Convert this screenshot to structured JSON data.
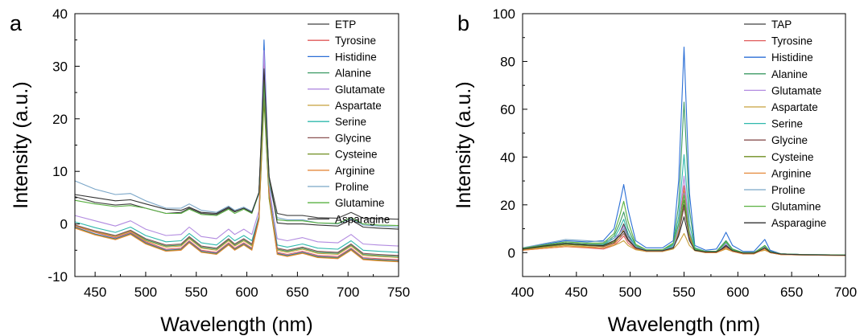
{
  "chart_data": [
    {
      "panel": "a",
      "type": "line",
      "title": "",
      "xlabel": "Wavelength (nm)",
      "ylabel": "Intensity (a.u.)",
      "xlim": [
        430,
        750
      ],
      "ylim": [
        -10,
        40
      ],
      "xticks": [
        450,
        500,
        550,
        600,
        650,
        700,
        750
      ],
      "yticks": [
        -10,
        0,
        10,
        20,
        30,
        40
      ],
      "grid": false,
      "legend": "top-right",
      "x": [
        430,
        450,
        470,
        485,
        500,
        520,
        535,
        543,
        555,
        570,
        582,
        588,
        597,
        605,
        612,
        617,
        622,
        630,
        640,
        655,
        670,
        690,
        703,
        715,
        730,
        750
      ],
      "series": [
        {
          "name": "ETP",
          "color": "#404040",
          "values": [
            5.2,
            4.1,
            3.6,
            3.8,
            3.0,
            2.0,
            2.2,
            3.0,
            2.0,
            1.8,
            3.0,
            2.3,
            3.0,
            2.2,
            6.0,
            28.0,
            9.0,
            2.0,
            1.6,
            1.6,
            1.2,
            1.1,
            2.2,
            1.1,
            1.0,
            0.9
          ]
        },
        {
          "name": "Tyrosine",
          "color": "#e05a5a",
          "values": [
            -0.4,
            -1.6,
            -2.6,
            -1.6,
            -3.4,
            -4.8,
            -4.6,
            -3.2,
            -5.0,
            -5.4,
            -3.6,
            -4.6,
            -3.6,
            -4.6,
            1.0,
            31.0,
            6.0,
            -5.4,
            -5.8,
            -5.2,
            -6.0,
            -6.2,
            -4.6,
            -6.4,
            -6.6,
            -6.8
          ]
        },
        {
          "name": "Histidine",
          "color": "#2b6fd6",
          "values": [
            -0.6,
            -1.9,
            -2.8,
            -1.8,
            -3.6,
            -5.0,
            -4.8,
            -3.4,
            -5.2,
            -5.6,
            -3.8,
            -4.8,
            -3.8,
            -4.8,
            1.5,
            35.0,
            7.0,
            -5.6,
            -6.0,
            -5.4,
            -6.2,
            -6.4,
            -4.8,
            -6.6,
            -6.8,
            -7.0
          ]
        },
        {
          "name": "Alanine",
          "color": "#3c9a64",
          "values": [
            -0.2,
            -1.4,
            -2.3,
            -1.3,
            -3.0,
            -4.2,
            -4.0,
            -2.6,
            -4.4,
            -4.8,
            -3.0,
            -4.0,
            -3.0,
            -4.0,
            1.0,
            27.5,
            5.5,
            -4.8,
            -5.2,
            -4.6,
            -5.4,
            -5.6,
            -4.0,
            -5.8,
            -6.0,
            -6.2
          ]
        },
        {
          "name": "Glutamate",
          "color": "#b28be0",
          "values": [
            1.6,
            0.6,
            -0.4,
            0.6,
            -1.0,
            -2.2,
            -2.0,
            -0.6,
            -2.4,
            -2.8,
            -1.0,
            -2.0,
            -1.0,
            -2.0,
            2.5,
            33.0,
            7.0,
            -2.8,
            -3.2,
            -2.6,
            -3.4,
            -3.6,
            -2.0,
            -3.8,
            -4.0,
            -4.2
          ]
        },
        {
          "name": "Aspartate",
          "color": "#c8a03c",
          "values": [
            -0.3,
            -1.5,
            -2.4,
            -1.4,
            -3.2,
            -4.4,
            -4.2,
            -2.8,
            -4.6,
            -5.0,
            -3.2,
            -4.2,
            -3.2,
            -4.2,
            1.0,
            25.0,
            5.0,
            -5.0,
            -5.4,
            -4.8,
            -5.6,
            -5.8,
            -4.2,
            -6.0,
            -6.2,
            -6.4
          ]
        },
        {
          "name": "Serine",
          "color": "#2fb8ac",
          "values": [
            0.4,
            -0.7,
            -1.6,
            -0.6,
            -2.2,
            -3.4,
            -3.2,
            -1.8,
            -3.6,
            -4.0,
            -2.2,
            -3.2,
            -2.2,
            -3.2,
            1.5,
            26.0,
            5.5,
            -4.0,
            -4.4,
            -3.8,
            -4.6,
            -4.8,
            -3.2,
            -5.0,
            -5.2,
            -5.4
          ]
        },
        {
          "name": "Glycine",
          "color": "#8a5252",
          "values": [
            -0.2,
            -1.3,
            -2.2,
            -1.2,
            -2.8,
            -4.0,
            -3.8,
            -2.4,
            -4.2,
            -4.6,
            -2.8,
            -3.8,
            -2.8,
            -3.8,
            1.2,
            24.5,
            5.2,
            -4.6,
            -5.0,
            -4.4,
            -5.2,
            -5.4,
            -3.8,
            -5.6,
            -5.8,
            -6.0
          ]
        },
        {
          "name": "Cysteine",
          "color": "#6f8e20",
          "values": [
            -0.7,
            -2.0,
            -2.9,
            -1.9,
            -3.7,
            -5.1,
            -4.9,
            -3.5,
            -5.3,
            -5.7,
            -3.9,
            -4.9,
            -3.9,
            -4.9,
            0.8,
            23.5,
            4.8,
            -5.7,
            -6.1,
            -5.5,
            -6.3,
            -6.5,
            -4.9,
            -6.7,
            -6.9,
            -7.1
          ]
        },
        {
          "name": "Arginine",
          "color": "#e58a3c",
          "values": [
            -0.8,
            -2.1,
            -3.0,
            -2.0,
            -3.8,
            -5.2,
            -5.0,
            -3.6,
            -5.4,
            -5.8,
            -4.0,
            -5.0,
            -4.0,
            -5.0,
            0.8,
            29.0,
            5.8,
            -5.8,
            -6.2,
            -5.6,
            -6.4,
            -6.6,
            -5.0,
            -6.8,
            -7.0,
            -7.2
          ]
        },
        {
          "name": "Proline",
          "color": "#7aa6c8",
          "values": [
            8.2,
            6.6,
            5.6,
            5.8,
            4.4,
            3.0,
            3.0,
            3.8,
            2.6,
            2.2,
            3.4,
            2.6,
            3.2,
            2.4,
            6.0,
            26.5,
            7.5,
            1.2,
            0.8,
            0.8,
            0.2,
            0.0,
            1.0,
            -0.2,
            -0.4,
            -0.6
          ]
        },
        {
          "name": "Glutamine",
          "color": "#58b040",
          "values": [
            4.5,
            3.8,
            3.3,
            3.5,
            3.0,
            2.0,
            2.0,
            2.8,
            1.8,
            1.6,
            2.8,
            2.0,
            2.8,
            2.0,
            5.8,
            27.0,
            8.5,
            0.8,
            0.6,
            0.6,
            0.2,
            0.1,
            1.2,
            0.0,
            -0.2,
            -0.3
          ]
        },
        {
          "name": "Asparagine",
          "color": "#333333",
          "values": [
            5.6,
            5.0,
            4.4,
            4.6,
            3.8,
            2.8,
            2.6,
            3.2,
            2.2,
            2.0,
            3.2,
            2.4,
            3.0,
            2.2,
            6.0,
            29.5,
            9.0,
            0.2,
            0.0,
            0.0,
            -0.2,
            -0.4,
            0.8,
            -0.6,
            -0.8,
            -1.0
          ]
        }
      ]
    },
    {
      "panel": "b",
      "type": "line",
      "title": "",
      "xlabel": "Wavelength (nm)",
      "ylabel": "Intensity (a.u.)",
      "xlim": [
        400,
        700
      ],
      "ylim": [
        -10,
        100
      ],
      "xticks": [
        400,
        450,
        500,
        550,
        600,
        650,
        700
      ],
      "yticks": [
        0,
        20,
        40,
        60,
        80,
        100
      ],
      "grid": false,
      "legend": "top-right",
      "x": [
        400,
        420,
        440,
        460,
        475,
        485,
        490,
        494,
        498,
        505,
        515,
        530,
        540,
        545,
        550,
        555,
        560,
        570,
        580,
        585,
        589,
        595,
        605,
        615,
        620,
        625,
        630,
        640,
        660,
        700
      ],
      "series": [
        {
          "name": "TAP",
          "color": "#404040",
          "values": [
            1.5,
            3.0,
            4.0,
            3.5,
            3.0,
            4.0,
            8.0,
            12.0,
            7.0,
            2.5,
            1.0,
            1.0,
            2.0,
            8.0,
            20.0,
            6.0,
            1.5,
            0.5,
            0.5,
            1.5,
            3.0,
            1.0,
            0.0,
            0.0,
            1.0,
            2.0,
            0.5,
            -0.5,
            -0.8,
            -1.0
          ]
        },
        {
          "name": "Tyrosine",
          "color": "#e05a5a",
          "values": [
            1.0,
            1.8,
            2.5,
            2.0,
            1.5,
            3.0,
            5.0,
            7.0,
            4.0,
            1.5,
            0.5,
            0.5,
            2.0,
            10.0,
            28.0,
            8.0,
            1.0,
            0.0,
            0.0,
            1.0,
            2.0,
            0.5,
            -0.5,
            -0.5,
            0.5,
            1.5,
            0.0,
            -0.8,
            -1.0,
            -1.2
          ]
        },
        {
          "name": "Histidine",
          "color": "#2b6fd6",
          "values": [
            2.0,
            3.5,
            5.0,
            4.5,
            5.0,
            10.0,
            20.0,
            28.5,
            18.0,
            5.0,
            2.0,
            2.0,
            5.0,
            30.0,
            86.0,
            25.0,
            3.0,
            1.0,
            1.5,
            5.0,
            8.5,
            3.0,
            0.5,
            0.5,
            3.0,
            5.5,
            1.0,
            -0.5,
            -0.8,
            -1.0
          ]
        },
        {
          "name": "Alanine",
          "color": "#3c9a64",
          "values": [
            1.5,
            3.0,
            4.0,
            3.5,
            3.5,
            7.0,
            12.0,
            17.0,
            10.0,
            3.0,
            1.0,
            1.0,
            3.5,
            20.0,
            63.0,
            18.0,
            2.0,
            0.5,
            0.5,
            3.0,
            5.0,
            1.5,
            0.0,
            0.0,
            1.5,
            3.0,
            0.5,
            -0.5,
            -0.8,
            -1.0
          ]
        },
        {
          "name": "Glutamate",
          "color": "#b28be0",
          "values": [
            1.5,
            2.8,
            3.8,
            3.2,
            3.0,
            5.0,
            8.0,
            11.0,
            6.5,
            2.0,
            0.8,
            0.8,
            2.5,
            12.0,
            32.0,
            9.0,
            1.5,
            0.5,
            0.5,
            2.0,
            3.5,
            1.0,
            0.0,
            0.0,
            1.0,
            2.5,
            0.3,
            -0.5,
            -0.8,
            -1.0
          ]
        },
        {
          "name": "Aspartate",
          "color": "#c8a03c",
          "values": [
            1.2,
            2.2,
            3.0,
            2.5,
            2.0,
            3.0,
            4.0,
            5.0,
            3.0,
            1.2,
            0.5,
            0.5,
            1.5,
            4.0,
            8.0,
            3.0,
            0.8,
            0.0,
            0.0,
            0.8,
            1.5,
            0.5,
            -0.5,
            -0.5,
            0.5,
            1.0,
            0.0,
            -0.8,
            -1.0,
            -1.2
          ]
        },
        {
          "name": "Serine",
          "color": "#2fb8ac",
          "values": [
            1.5,
            2.8,
            3.8,
            3.2,
            3.2,
            6.0,
            10.0,
            14.0,
            8.0,
            2.5,
            1.0,
            1.0,
            3.0,
            15.0,
            41.0,
            12.0,
            1.8,
            0.5,
            0.5,
            2.5,
            4.5,
            1.2,
            0.0,
            0.0,
            1.2,
            3.0,
            0.3,
            -0.5,
            -0.8,
            -1.0
          ]
        },
        {
          "name": "Glycine",
          "color": "#8a5252",
          "values": [
            1.4,
            2.5,
            3.5,
            3.0,
            2.5,
            4.0,
            6.0,
            8.0,
            5.0,
            1.8,
            0.6,
            0.6,
            2.0,
            8.0,
            19.0,
            6.0,
            1.0,
            0.2,
            0.2,
            1.2,
            2.5,
            0.8,
            -0.3,
            -0.3,
            0.8,
            2.0,
            0.2,
            -0.6,
            -0.9,
            -1.1
          ]
        },
        {
          "name": "Cysteine",
          "color": "#6f8e20",
          "values": [
            1.4,
            2.5,
            3.5,
            3.0,
            2.8,
            4.5,
            7.0,
            9.0,
            5.5,
            2.0,
            0.7,
            0.7,
            2.2,
            9.0,
            22.0,
            7.0,
            1.2,
            0.3,
            0.3,
            1.5,
            3.0,
            0.8,
            -0.2,
            -0.2,
            0.8,
            2.0,
            0.2,
            -0.6,
            -0.9,
            -1.1
          ]
        },
        {
          "name": "Arginine",
          "color": "#e58a3c",
          "values": [
            1.0,
            1.8,
            2.5,
            2.2,
            2.0,
            3.5,
            6.0,
            10.0,
            5.5,
            1.8,
            0.6,
            0.6,
            2.0,
            9.0,
            26.0,
            7.0,
            1.0,
            0.0,
            0.0,
            1.0,
            2.0,
            0.5,
            -0.5,
            -0.5,
            0.5,
            1.5,
            0.0,
            -0.8,
            -1.0,
            -1.2
          ]
        },
        {
          "name": "Proline",
          "color": "#7aa6c8",
          "values": [
            2.0,
            3.8,
            5.5,
            5.0,
            4.5,
            6.0,
            8.0,
            10.0,
            6.5,
            2.5,
            1.0,
            1.0,
            2.5,
            10.0,
            25.0,
            8.0,
            1.5,
            0.5,
            0.5,
            2.0,
            4.0,
            1.0,
            0.0,
            0.0,
            1.0,
            2.5,
            0.3,
            -0.5,
            -0.8,
            -1.0
          ]
        },
        {
          "name": "Glutamine",
          "color": "#58b040",
          "values": [
            1.8,
            3.2,
            4.5,
            4.0,
            4.0,
            8.0,
            15.0,
            21.5,
            13.0,
            3.5,
            1.2,
            1.2,
            4.0,
            12.0,
            24.0,
            8.0,
            1.5,
            0.5,
            0.5,
            2.5,
            4.5,
            1.2,
            0.0,
            0.0,
            1.2,
            3.0,
            0.3,
            -0.5,
            -0.8,
            -1.0
          ]
        },
        {
          "name": "Asparagine",
          "color": "#333333",
          "values": [
            1.5,
            2.8,
            3.8,
            3.2,
            3.0,
            5.0,
            7.0,
            9.0,
            5.5,
            2.0,
            0.8,
            0.8,
            2.0,
            7.0,
            15.0,
            5.0,
            1.0,
            0.3,
            0.3,
            1.5,
            3.0,
            0.8,
            -0.2,
            -0.2,
            0.8,
            2.0,
            0.2,
            -0.6,
            -0.9,
            -1.1
          ]
        }
      ]
    }
  ]
}
